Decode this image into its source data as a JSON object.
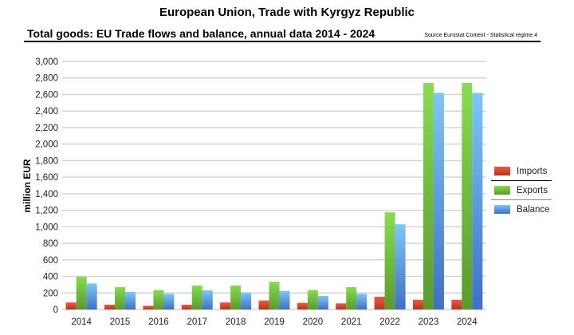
{
  "chart_data": {
    "type": "bar",
    "title": "European Union, Trade with Kyrgyz Republic",
    "subtitle": "Total goods: EU Trade flows and balance, annual data 2014 - 2024",
    "source": "Source Eurostat Comext  - Statistical regime 4",
    "ylabel": "million EUR",
    "xlabel": "",
    "ylim": [
      0,
      3000
    ],
    "yticks": [
      "0",
      "200",
      "400",
      "600",
      "800",
      "1,000",
      "1,200",
      "1,400",
      "1,600",
      "1,800",
      "2,000",
      "2,200",
      "2,400",
      "2,600",
      "2,800",
      "3,000"
    ],
    "grid": true,
    "legend_position": "right",
    "categories": [
      "2014",
      "2015",
      "2016",
      "2017",
      "2018",
      "2019",
      "2020",
      "2021",
      "2022",
      "2023",
      "2024"
    ],
    "series": [
      {
        "name": "Imports",
        "color": "#d9442c",
        "values": [
          85,
          58,
          45,
          58,
          85,
          109,
          80,
          74,
          155,
          118,
          118
        ]
      },
      {
        "name": "Exports",
        "color": "#6cbf3a",
        "values": [
          398,
          270,
          235,
          290,
          290,
          335,
          235,
          270,
          1175,
          2740,
          2740
        ]
      },
      {
        "name": "Balance",
        "color": "#5a9de0",
        "values": [
          315,
          212,
          190,
          232,
          205,
          226,
          164,
          190,
          1030,
          2620,
          2620
        ]
      }
    ]
  }
}
